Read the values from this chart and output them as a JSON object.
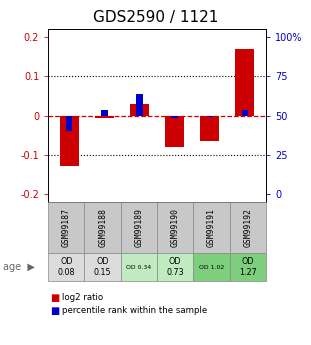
{
  "title": "GDS2590 / 1121",
  "samples": [
    "GSM99187",
    "GSM99188",
    "GSM99189",
    "GSM99190",
    "GSM99191",
    "GSM99192"
  ],
  "log2_ratio": [
    -0.128,
    -0.005,
    0.03,
    -0.08,
    -0.065,
    0.17
  ],
  "percentile_rank_val": [
    -0.04,
    0.015,
    0.055,
    -0.005,
    -0.003,
    0.015
  ],
  "ylim": [
    -0.22,
    0.22
  ],
  "yticks_left": [
    -0.2,
    -0.1,
    0.0,
    0.1,
    0.2
  ],
  "yticks_right_vals": [
    -0.2,
    -0.1,
    0.0,
    0.1,
    0.2
  ],
  "yticks_right_labels": [
    "0",
    "25",
    "50",
    "75",
    "100%"
  ],
  "red_bar_width": 0.55,
  "blue_bar_width": 0.18,
  "log2_color": "#cc0000",
  "pct_color": "#0000cc",
  "zero_line_color": "#cc0000",
  "dotted_color": "#000000",
  "bg_color": "#ffffff",
  "age_labels": [
    "OD\n0.08",
    "OD\n0.15",
    "OD 0.34",
    "OD\n0.73",
    "OD 1.02",
    "OD\n1.27"
  ],
  "age_fontsizes": [
    8.5,
    8.5,
    6.5,
    8.5,
    6.5,
    8.5
  ],
  "cell_colors": [
    "#dcdcdc",
    "#dcdcdc",
    "#c0eac0",
    "#c0eac0",
    "#7dce7d",
    "#7dce7d"
  ],
  "gsm_bg": "#c8c8c8",
  "title_fontsize": 11,
  "legend_red": "log2 ratio",
  "legend_blue": "percentile rank within the sample"
}
